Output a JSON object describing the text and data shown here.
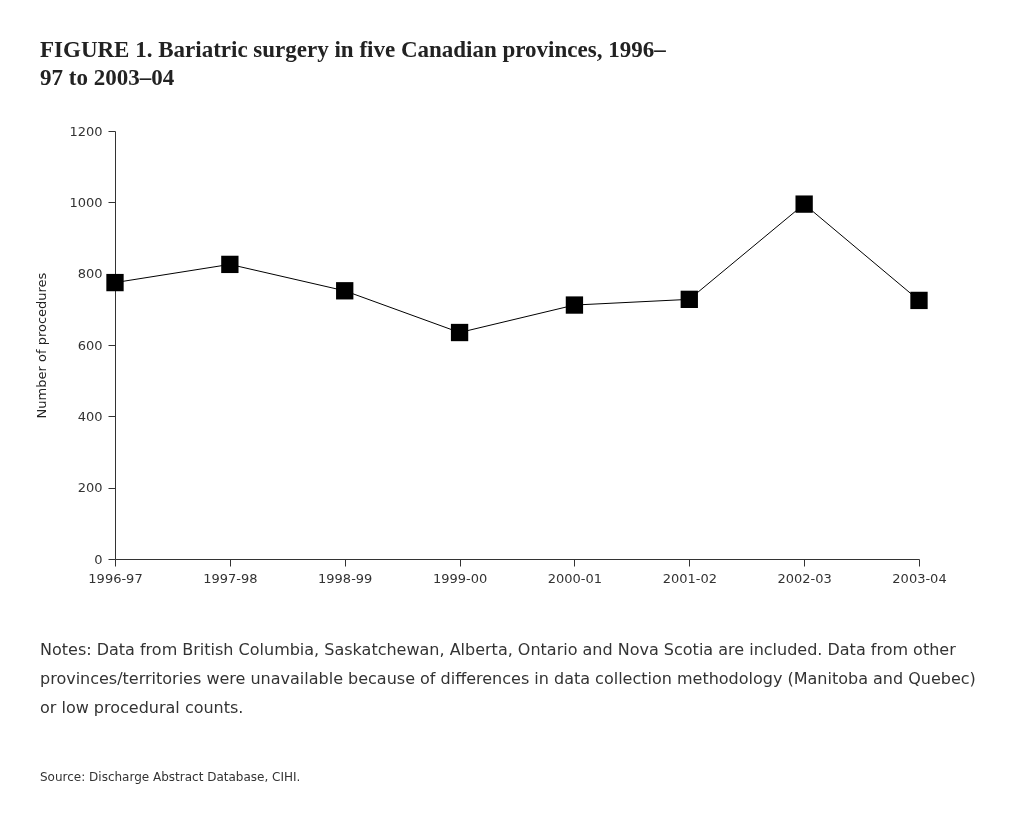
{
  "chart_data": {
    "type": "line",
    "title": "FIGURE 1. Bariatric surgery in five Canadian provinces, 1996–97 to 2003–04",
    "ylabel": "Number of procedures",
    "categories": [
      "1996-97",
      "1997-98",
      "1998-99",
      "1999-00",
      "2000-01",
      "2001-02",
      "2002-03",
      "2003-04"
    ],
    "series": [
      {
        "color": "#000000",
        "values": [
          775,
          826,
          752,
          635,
          712,
          728,
          995,
          725
        ]
      }
    ],
    "ylim": [
      0,
      1200
    ],
    "yticks": [
      0,
      200,
      400,
      600,
      800,
      1000,
      1200
    ],
    "grid": false,
    "marker": "square",
    "line_style": "solid",
    "annotations": [
      "Notes: Data from British Columbia, Saskatchewan, Alberta, Ontario and Nova Scotia are included. Data from other provinces/territories were unavailable because of differences in data collection methodology (Manitoba and Quebec) or low procedural counts.",
      "Source: Discharge Abstract Database, CIHI."
    ]
  }
}
